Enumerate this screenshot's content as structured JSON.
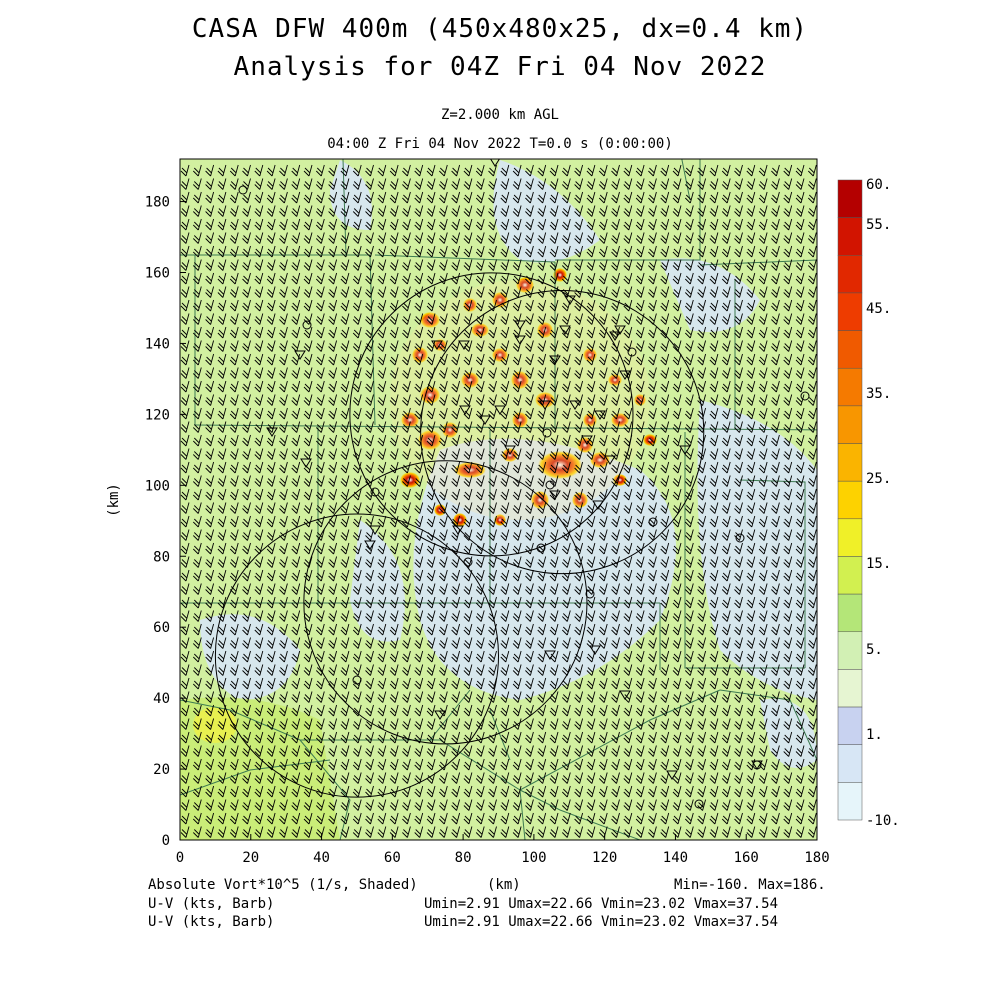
{
  "header": {
    "title_line1": "CASA DFW 400m (450x480x25, dx=0.4 km)",
    "title_line2": "Analysis for 04Z Fri 04 Nov 2022",
    "level": "Z=2.000 km AGL",
    "time": "04:00 Z Fri 04 Nov 2022    T=0.0 s (0:00:00)"
  },
  "axes": {
    "x_label": "(km)",
    "y_label": "(km)",
    "x_ticks": [
      "0",
      "20",
      "40",
      "60",
      "80",
      "100",
      "120",
      "140",
      "160",
      "180"
    ],
    "y_ticks": [
      "0",
      "20",
      "40",
      "60",
      "80",
      "100",
      "120",
      "140",
      "160",
      "180"
    ],
    "x_range": [
      0,
      180
    ],
    "y_range": [
      0,
      192
    ]
  },
  "colorbar": {
    "labels": [
      "60.",
      "55.",
      "45.",
      "35.",
      "25.",
      "15.",
      "5.",
      "1.",
      "-10."
    ],
    "colors": [
      "#b40000",
      "#d21400",
      "#e12800",
      "#ee3c00",
      "#f05a00",
      "#f57a00",
      "#f89600",
      "#fab400",
      "#fdd200",
      "#f0f028",
      "#d2f050",
      "#b4e678",
      "#d2f0b4",
      "#e6f5d2",
      "#c8d2f0",
      "#d7e6f5",
      "#e6f5fa"
    ]
  },
  "footer": {
    "field_label": "Absolute Vort*10^5 (1/s, Shaded)",
    "km_label": "(km)",
    "minmax": "Min=-160. Max=186.",
    "barb1_label": "U-V (kts, Barb)",
    "barb1_stats": "Umin=2.91 Umax=22.66 Vmin=23.02 Vmax=37.54",
    "barb2_label": "U-V (kts, Barb)",
    "barb2_stats": "Umin=2.91 Umax=22.66 Vmin=23.02 Vmax=37.54"
  },
  "map": {
    "radar_rings": [
      {
        "x": 88,
        "y": 120,
        "r": 40
      },
      {
        "x": 108,
        "y": 115,
        "r": 40
      },
      {
        "x": 75,
        "y": 67,
        "r": 40
      },
      {
        "x": 50,
        "y": 52,
        "r": 40
      }
    ],
    "colors": {
      "background_field": "#d2f0a0",
      "county_lines": "#3c7a50",
      "barb": "#000000"
    }
  }
}
